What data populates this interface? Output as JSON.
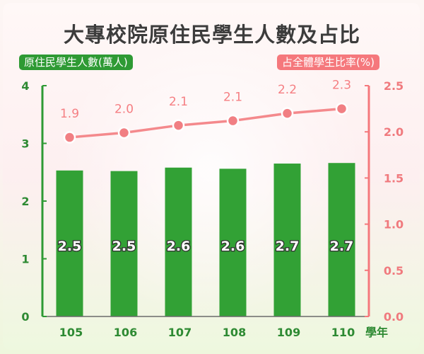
{
  "chart_data": {
    "type": "bar",
    "title": "大專校院原住民學生人數及占比",
    "categories": [
      "105",
      "106",
      "107",
      "108",
      "109",
      "110"
    ],
    "xlabel": "學年",
    "series": [
      {
        "name": "原住民學生人數(萬人)",
        "type": "bar",
        "axis": "left",
        "values": [
          2.53,
          2.52,
          2.58,
          2.56,
          2.65,
          2.66
        ],
        "labels": [
          "2.5",
          "2.5",
          "2.6",
          "2.6",
          "2.7",
          "2.7"
        ],
        "color": "#32a135"
      },
      {
        "name": "占全體學生比率(%)",
        "type": "line",
        "axis": "right",
        "values": [
          1.94,
          1.99,
          2.07,
          2.12,
          2.2,
          2.25
        ],
        "labels": [
          "1.9",
          "2.0",
          "2.1",
          "2.1",
          "2.2",
          "2.3"
        ],
        "color": "#f4898c"
      }
    ],
    "y_left": {
      "min": 0,
      "max": 4,
      "ticks": [
        "0",
        "1",
        "2",
        "3",
        "4"
      ],
      "color": "#2e9a34"
    },
    "y_right": {
      "min": 0,
      "max": 2.5,
      "ticks": [
        "0.0",
        "0.5",
        "1.0",
        "1.5",
        "2.0",
        "2.5"
      ],
      "color": "#f5787c"
    },
    "grid": false,
    "legend": "top badges"
  }
}
